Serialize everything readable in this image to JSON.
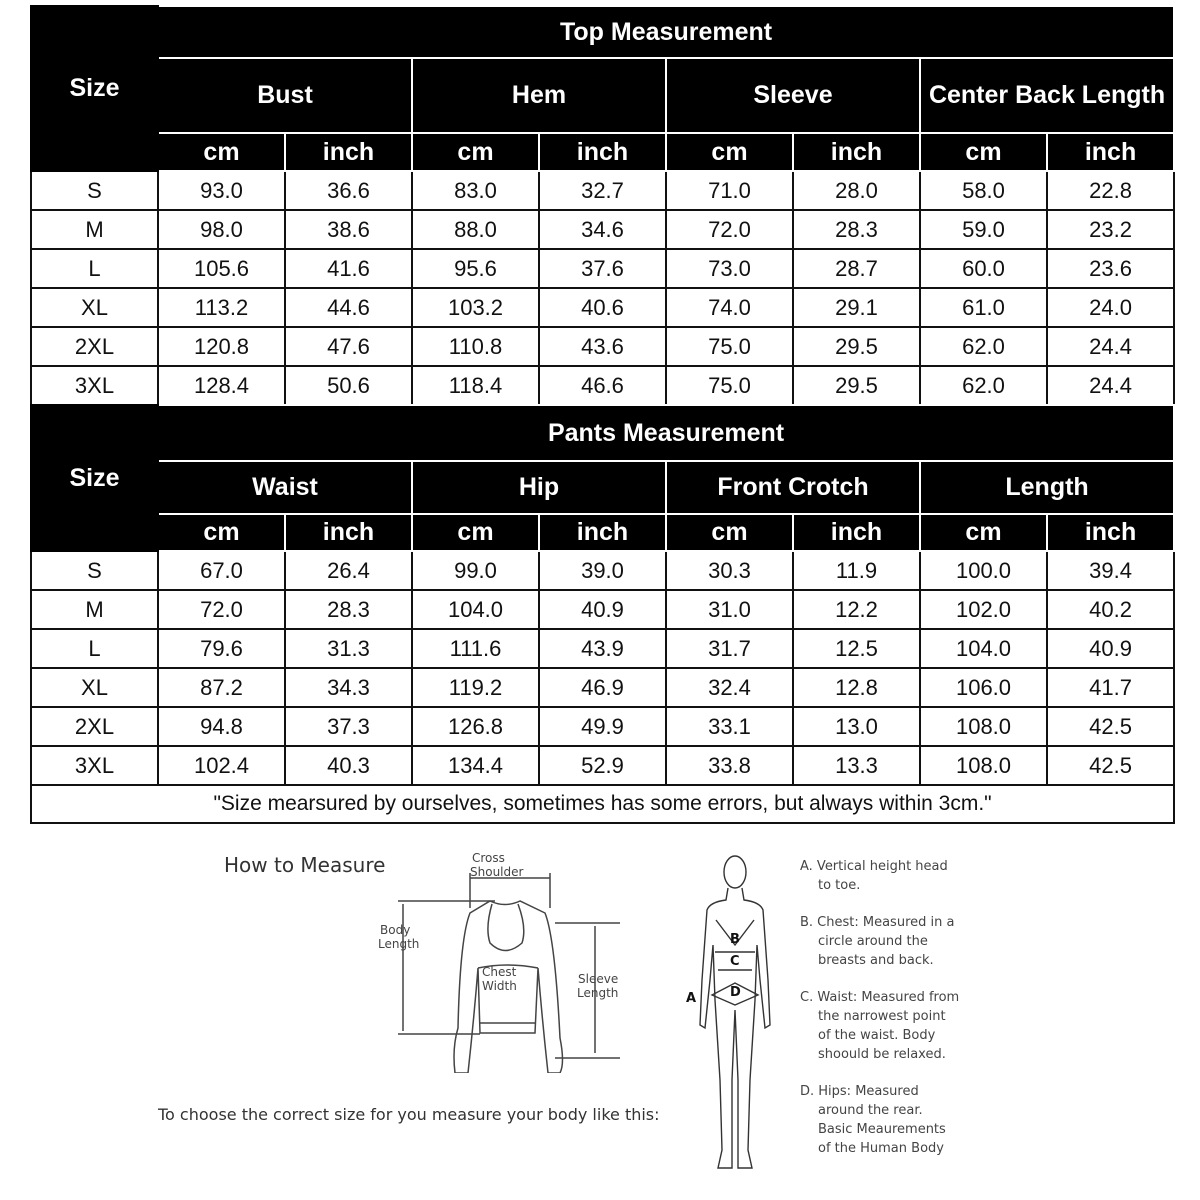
{
  "top": {
    "title": "Top Measurement",
    "size_label": "Size",
    "groups": [
      "Bust",
      "Hem",
      "Sleeve",
      "Center Back Length"
    ],
    "units": [
      "cm",
      "inch"
    ],
    "rows": [
      [
        "S",
        "93.0",
        "36.6",
        "83.0",
        "32.7",
        "71.0",
        "28.0",
        "58.0",
        "22.8"
      ],
      [
        "M",
        "98.0",
        "38.6",
        "88.0",
        "34.6",
        "72.0",
        "28.3",
        "59.0",
        "23.2"
      ],
      [
        "L",
        "105.6",
        "41.6",
        "95.6",
        "37.6",
        "73.0",
        "28.7",
        "60.0",
        "23.6"
      ],
      [
        "XL",
        "113.2",
        "44.6",
        "103.2",
        "40.6",
        "74.0",
        "29.1",
        "61.0",
        "24.0"
      ],
      [
        "2XL",
        "120.8",
        "47.6",
        "110.8",
        "43.6",
        "75.0",
        "29.5",
        "62.0",
        "24.4"
      ],
      [
        "3XL",
        "128.4",
        "50.6",
        "118.4",
        "46.6",
        "75.0",
        "29.5",
        "62.0",
        "24.4"
      ]
    ]
  },
  "pants": {
    "title": "Pants Measurement",
    "size_label": "Size",
    "groups": [
      "Waist",
      "Hip",
      "Front Crotch",
      "Length"
    ],
    "units": [
      "cm",
      "inch"
    ],
    "rows": [
      [
        "S",
        "67.0",
        "26.4",
        "99.0",
        "39.0",
        "30.3",
        "11.9",
        "100.0",
        "39.4"
      ],
      [
        "M",
        "72.0",
        "28.3",
        "104.0",
        "40.9",
        "31.0",
        "12.2",
        "102.0",
        "40.2"
      ],
      [
        "L",
        "79.6",
        "31.3",
        "111.6",
        "43.9",
        "31.7",
        "12.5",
        "104.0",
        "40.9"
      ],
      [
        "XL",
        "87.2",
        "34.3",
        "119.2",
        "46.9",
        "32.4",
        "12.8",
        "106.0",
        "41.7"
      ],
      [
        "2XL",
        "94.8",
        "37.3",
        "126.8",
        "49.9",
        "33.1",
        "13.0",
        "108.0",
        "42.5"
      ],
      [
        "3XL",
        "102.4",
        "40.3",
        "134.4",
        "52.9",
        "33.8",
        "13.3",
        "108.0",
        "42.5"
      ]
    ],
    "note": "\"Size mearsured by ourselves, sometimes has some errors, but always within 3cm.\""
  },
  "guide": {
    "heading": "How to Measure",
    "instruction": "To choose the correct size for you measure your body like this:",
    "shirt_labels": {
      "cross": [
        "Cross",
        "Shoulder"
      ],
      "body": [
        "Body",
        "Length"
      ],
      "chest": [
        "Chest",
        "Width"
      ],
      "sleeve": [
        "Sleeve",
        "Length"
      ]
    },
    "figure_labels": [
      "A",
      "B",
      "C",
      "D"
    ],
    "notes": [
      "A. Vertical height head to toe.",
      "B. Chest: Measured in a circle around the breasts and back.",
      "C. Waist: Measured from the narrowest point of the waist. Body shoould be relaxed.",
      "D. Hips: Measured around the rear. Basic Meaurements of the Human Body"
    ]
  }
}
